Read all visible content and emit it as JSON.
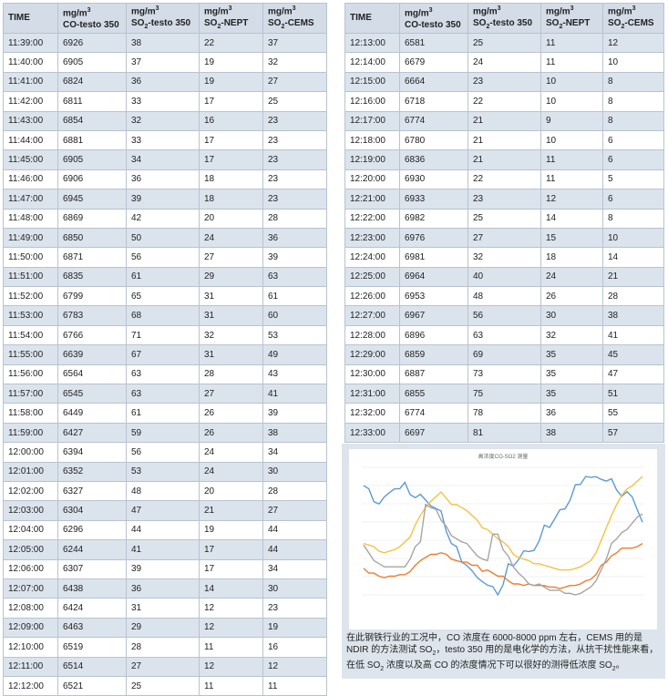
{
  "left_table": {
    "header": [
      {
        "name": [
          "TIME"
        ]
      },
      {
        "unit": "mg/m",
        "unit_exp": "3",
        "name": [
          "CO-testo 350"
        ]
      },
      {
        "unit": "mg/m",
        "unit_exp": "3",
        "name": [
          "SO",
          "2",
          "-testo 350"
        ]
      },
      {
        "unit": "mg/m",
        "unit_exp": "3",
        "name": [
          "SO",
          "2",
          "-NEPT"
        ]
      },
      {
        "unit": "mg/m",
        "unit_exp": "3",
        "name": [
          "SO",
          "2",
          "-CEMS"
        ]
      }
    ],
    "rows": [
      [
        "11:39:00",
        6926,
        38,
        22,
        37
      ],
      [
        "11:40:00",
        6905,
        37,
        19,
        32
      ],
      [
        "11:41:00",
        6824,
        36,
        19,
        27
      ],
      [
        "11:42:00",
        6811,
        33,
        17,
        25
      ],
      [
        "11:43:00",
        6854,
        32,
        16,
        23
      ],
      [
        "11:44:00",
        6881,
        33,
        17,
        23
      ],
      [
        "11:45:00",
        6905,
        34,
        17,
        23
      ],
      [
        "11:46:00",
        6906,
        36,
        18,
        23
      ],
      [
        "11:47:00",
        6945,
        39,
        18,
        23
      ],
      [
        "11:48:00",
        6869,
        42,
        20,
        28
      ],
      [
        "11:49:00",
        6850,
        50,
        24,
        36
      ],
      [
        "11:50:00",
        6871,
        56,
        27,
        39
      ],
      [
        "11:51:00",
        6835,
        61,
        29,
        63
      ],
      [
        "11:52:00",
        6799,
        65,
        31,
        61
      ],
      [
        "11:53:00",
        6783,
        68,
        31,
        60
      ],
      [
        "11:54:00",
        6766,
        71,
        32,
        53
      ],
      [
        "11:55:00",
        6639,
        67,
        31,
        49
      ],
      [
        "11:56:00",
        6564,
        63,
        28,
        43
      ],
      [
        "11:57:00",
        6545,
        63,
        27,
        41
      ],
      [
        "11:58:00",
        6449,
        61,
        26,
        39
      ],
      [
        "11:59:00",
        6427,
        59,
        26,
        38
      ],
      [
        "12:00:00",
        6394,
        56,
        24,
        34
      ],
      [
        "12:01:00",
        6352,
        53,
        24,
        30
      ],
      [
        "12:02:00",
        6327,
        48,
        20,
        28
      ],
      [
        "12:03:00",
        6304,
        47,
        21,
        27
      ],
      [
        "12:04:00",
        6296,
        44,
        19,
        44
      ],
      [
        "12:05:00",
        6244,
        41,
        17,
        44
      ],
      [
        "12:06:00",
        6307,
        39,
        17,
        34
      ],
      [
        "12:07:00",
        6438,
        36,
        14,
        30
      ],
      [
        "12:08:00",
        6424,
        31,
        12,
        23
      ],
      [
        "12:09:00",
        6463,
        29,
        12,
        19
      ],
      [
        "12:10:00",
        6519,
        28,
        11,
        16
      ],
      [
        "12:11:00",
        6514,
        27,
        12,
        12
      ],
      [
        "12:12:00",
        6521,
        25,
        11,
        11
      ]
    ]
  },
  "right_table": {
    "header": [
      {
        "name": [
          "TIME"
        ]
      },
      {
        "unit": "mg/m",
        "unit_exp": "3",
        "name": [
          "CO-testo 350"
        ]
      },
      {
        "unit": "mg/m",
        "unit_exp": "3",
        "name": [
          "SO",
          "2",
          "-testo 350"
        ]
      },
      {
        "unit": "mg/m",
        "unit_exp": "3",
        "name": [
          "SO",
          "2",
          "-NEPT"
        ]
      },
      {
        "unit": "mg/m",
        "unit_exp": "3",
        "name": [
          "SO",
          "2",
          "-CEMS"
        ]
      }
    ],
    "rows": [
      [
        "12:13:00",
        6581,
        25,
        11,
        12
      ],
      [
        "12:14:00",
        6679,
        24,
        11,
        10
      ],
      [
        "12:15:00",
        6664,
        23,
        10,
        8
      ],
      [
        "12:16:00",
        6718,
        22,
        10,
        8
      ],
      [
        "12:17:00",
        6774,
        21,
        9,
        8
      ],
      [
        "12:18:00",
        6780,
        21,
        10,
        6
      ],
      [
        "12:19:00",
        6836,
        21,
        11,
        6
      ],
      [
        "12:20:00",
        6930,
        22,
        11,
        5
      ],
      [
        "12:21:00",
        6933,
        23,
        12,
        6
      ],
      [
        "12:22:00",
        6982,
        25,
        14,
        8
      ],
      [
        "12:23:00",
        6976,
        27,
        15,
        10
      ],
      [
        "12:24:00",
        6981,
        32,
        18,
        14
      ],
      [
        "12:25:00",
        6964,
        40,
        24,
        21
      ],
      [
        "12:26:00",
        6953,
        48,
        26,
        28
      ],
      [
        "12:27:00",
        6967,
        56,
        30,
        38
      ],
      [
        "12:28:00",
        6896,
        63,
        32,
        41
      ],
      [
        "12:29:00",
        6859,
        69,
        35,
        45
      ],
      [
        "12:30:00",
        6887,
        73,
        35,
        47
      ],
      [
        "12:31:00",
        6855,
        75,
        35,
        51
      ],
      [
        "12:32:00",
        6774,
        78,
        36,
        55
      ],
      [
        "12:33:00",
        6697,
        81,
        38,
        57
      ]
    ]
  },
  "chart": {
    "title": "高浓度CO-SO2 测量",
    "colors": [
      "#5b9bd5",
      "#f5c242",
      "#ed7d31",
      "#a5a5a5"
    ]
  },
  "caption": [
    "在此钢铁行业的工况中，CO 浓度在 6000-8000 ppm 左右，CEMS 用的是 NDIR 的方法测试 SO",
    "2",
    "，testo 350 用的是电化学的方法，从抗干扰性能来看，在低 SO",
    "2",
    " 浓度以及高 CO 的浓度情况下可以很好的测得低浓度 SO",
    "2",
    "。"
  ]
}
